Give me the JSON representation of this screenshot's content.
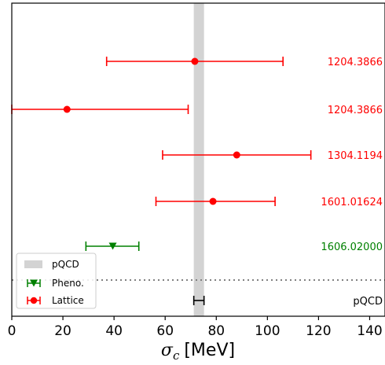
{
  "chart_data": {
    "type": "scatter",
    "xlabel_symbol": "σ",
    "xlabel_sub": "c",
    "xlabel_unit": "[MeV]",
    "xlim": [
      0,
      146
    ],
    "xticks": [
      0,
      20,
      40,
      60,
      80,
      100,
      120,
      140
    ],
    "grid": false,
    "pqcd_band": {
      "center": 73.2,
      "half_width": 2.0,
      "color": "#d3d3d3"
    },
    "separator_line": {
      "style": "dotted",
      "color": "#808080"
    },
    "entries": [
      {
        "ref": "1204.3866",
        "value": 71.6,
        "err_low": 34.5,
        "err_high": 34.5,
        "marker": "circle",
        "color": "#ff0000"
      },
      {
        "ref": "1204.3866",
        "value": 21.6,
        "err_low": 21.6,
        "err_high": 47.4,
        "marker": "circle",
        "color": "#ff0000"
      },
      {
        "ref": "1304.1194",
        "value": 88.0,
        "err_low": 29.0,
        "err_high": 29.0,
        "marker": "circle",
        "color": "#ff0000"
      },
      {
        "ref": "1601.01624",
        "value": 78.7,
        "err_low": 22.3,
        "err_high": 24.3,
        "marker": "circle",
        "color": "#ff0000"
      },
      {
        "ref": "1606.02000",
        "value": 39.5,
        "err_low": 10.5,
        "err_high": 10.2,
        "marker": "triangle-down",
        "color": "#008000"
      },
      {
        "ref": "pQCD",
        "value": 73.2,
        "err_low": 2.0,
        "err_high": 2.0,
        "marker": "none",
        "color": "#000000"
      }
    ],
    "legend": {
      "position": "lower-left",
      "items": [
        {
          "label": "pQCD",
          "kind": "band",
          "color": "#d3d3d3"
        },
        {
          "label": "Pheno.",
          "kind": "triangle-down",
          "color": "#008000"
        },
        {
          "label": "Lattice",
          "kind": "circle",
          "color": "#ff0000"
        }
      ]
    }
  }
}
